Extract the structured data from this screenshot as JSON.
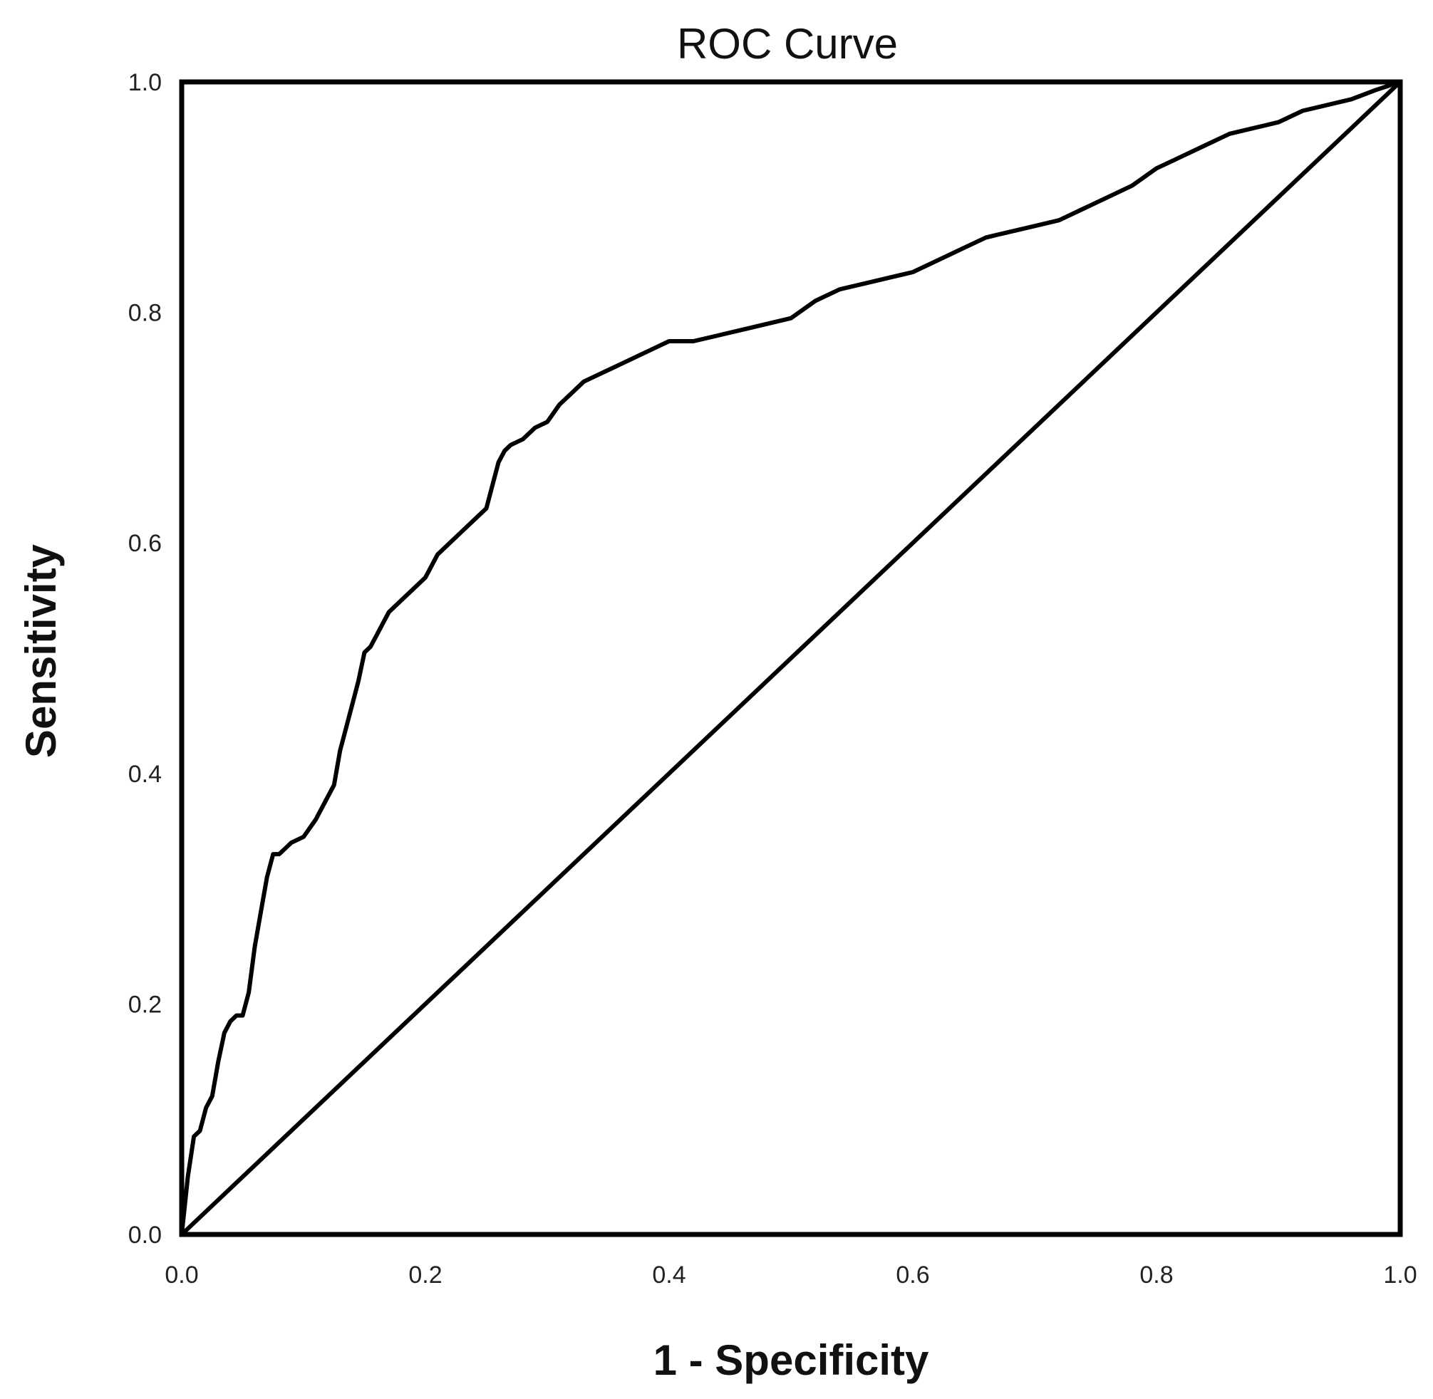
{
  "chart_data": {
    "type": "line",
    "title": "ROC Curve",
    "xlabel": "1 - Specificity",
    "ylabel": "Sensitivity",
    "xlim": [
      0,
      1
    ],
    "ylim": [
      0,
      1
    ],
    "x_ticks": [
      "0.0",
      "0.2",
      "0.4",
      "0.6",
      "0.8",
      "1.0"
    ],
    "y_ticks": [
      "0.0",
      "0.2",
      "0.4",
      "0.6",
      "0.8",
      "1.0"
    ],
    "x_tick_values": [
      0,
      0.2,
      0.4,
      0.6,
      0.8,
      1.0
    ],
    "y_tick_values": [
      0,
      0.2,
      0.4,
      0.6,
      0.8,
      1.0
    ],
    "grid": false,
    "colors": {
      "line": "#000000",
      "frame": "#000000"
    },
    "series": [
      {
        "x": [
          0.0,
          0.005,
          0.01,
          0.015,
          0.02,
          0.025,
          0.03,
          0.035,
          0.04,
          0.045,
          0.05,
          0.055,
          0.06,
          0.065,
          0.07,
          0.075,
          0.08,
          0.085,
          0.09,
          0.1,
          0.11,
          0.12,
          0.125,
          0.13,
          0.135,
          0.14,
          0.145,
          0.15,
          0.155,
          0.16,
          0.17,
          0.18,
          0.19,
          0.2,
          0.21,
          0.22,
          0.23,
          0.24,
          0.25,
          0.26,
          0.265,
          0.27,
          0.28,
          0.29,
          0.3,
          0.31,
          0.32,
          0.33,
          0.34,
          0.35,
          0.36,
          0.37,
          0.38,
          0.39,
          0.4,
          0.42,
          0.44,
          0.46,
          0.48,
          0.5,
          0.52,
          0.54,
          0.56,
          0.58,
          0.6,
          0.62,
          0.64,
          0.66,
          0.68,
          0.7,
          0.72,
          0.74,
          0.76,
          0.78,
          0.8,
          0.82,
          0.84,
          0.86,
          0.88,
          0.9,
          0.92,
          0.94,
          0.96,
          0.98,
          1.0
        ],
        "y": [
          0.0,
          0.05,
          0.085,
          0.09,
          0.11,
          0.12,
          0.15,
          0.175,
          0.185,
          0.19,
          0.19,
          0.21,
          0.25,
          0.28,
          0.31,
          0.33,
          0.33,
          0.335,
          0.34,
          0.345,
          0.36,
          0.38,
          0.39,
          0.42,
          0.44,
          0.46,
          0.48,
          0.505,
          0.51,
          0.52,
          0.54,
          0.55,
          0.56,
          0.57,
          0.59,
          0.6,
          0.61,
          0.62,
          0.63,
          0.67,
          0.68,
          0.685,
          0.69,
          0.7,
          0.705,
          0.72,
          0.73,
          0.74,
          0.745,
          0.75,
          0.755,
          0.76,
          0.765,
          0.77,
          0.775,
          0.775,
          0.78,
          0.785,
          0.79,
          0.795,
          0.81,
          0.82,
          0.825,
          0.83,
          0.835,
          0.845,
          0.855,
          0.865,
          0.87,
          0.875,
          0.88,
          0.89,
          0.9,
          0.91,
          0.925,
          0.935,
          0.945,
          0.955,
          0.96,
          0.965,
          0.975,
          0.98,
          0.985,
          0.993,
          1.0
        ]
      },
      {
        "x": [
          0,
          1
        ],
        "y": [
          0,
          1
        ]
      }
    ]
  }
}
